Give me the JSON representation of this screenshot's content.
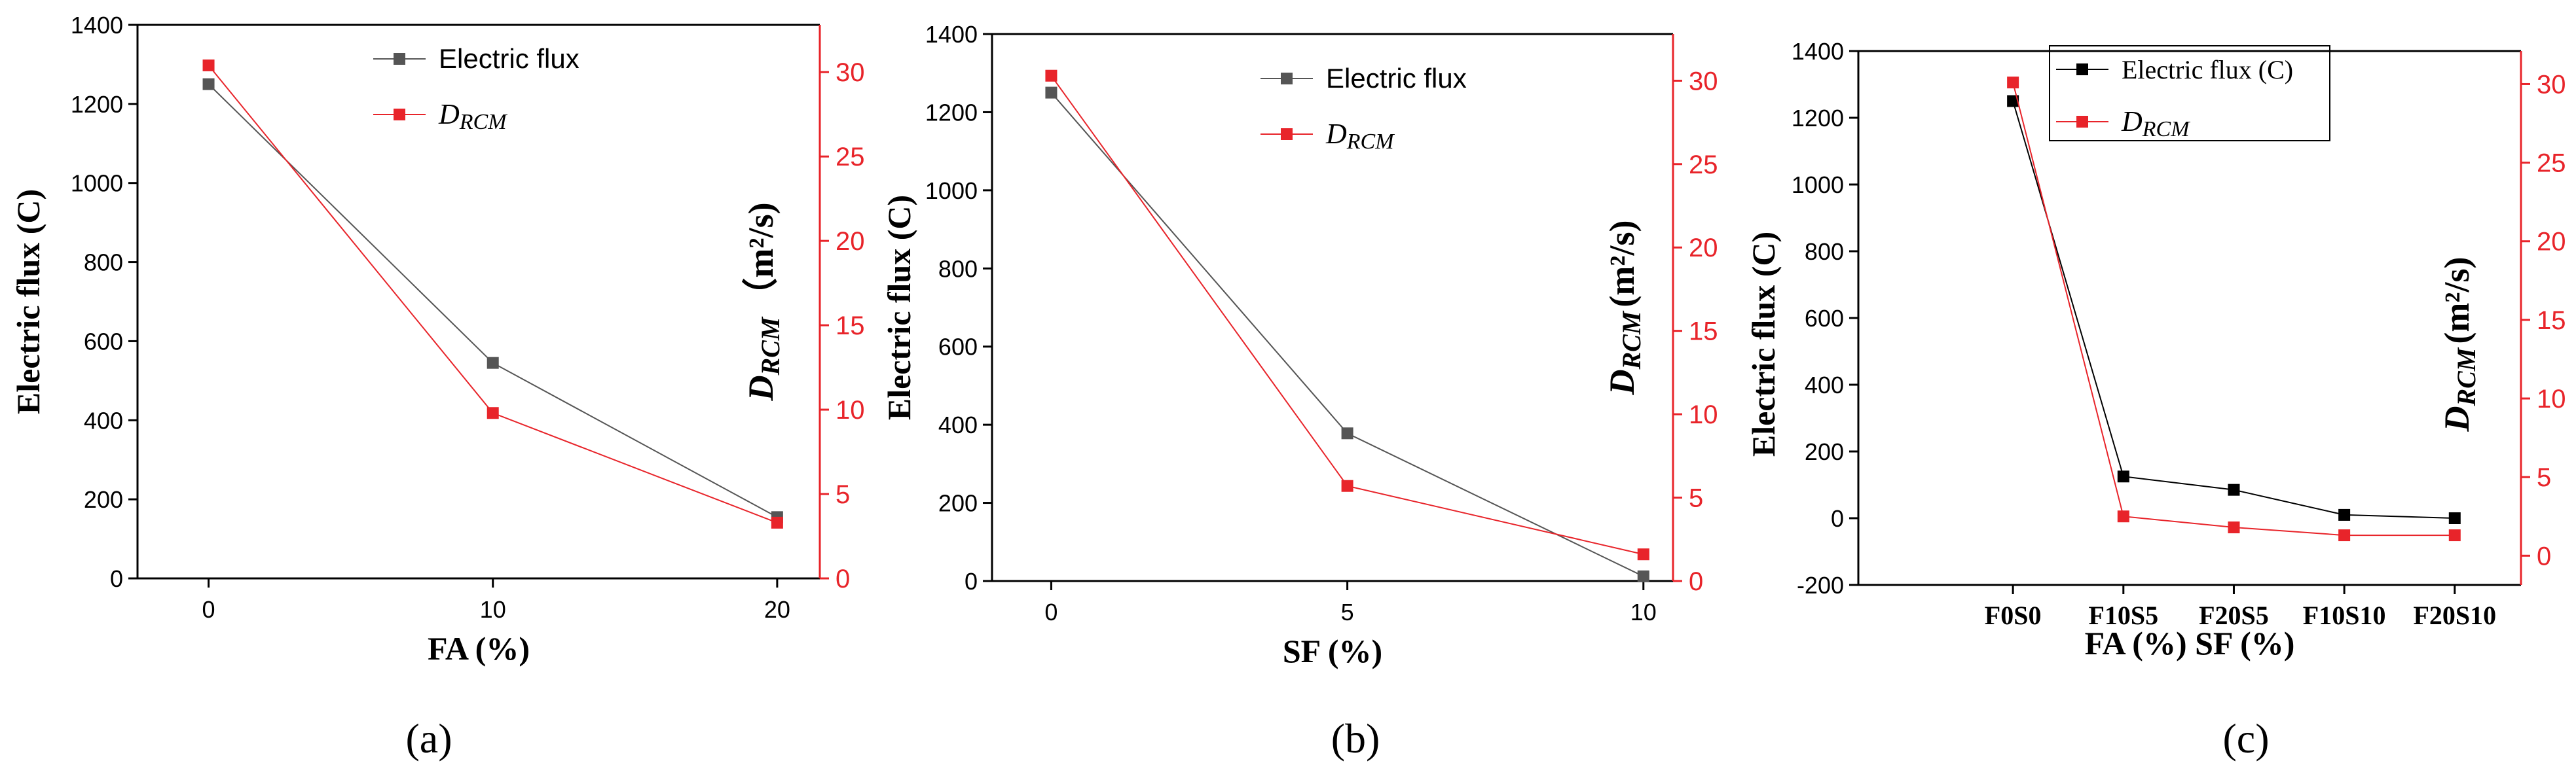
{
  "chart_data": [
    {
      "type": "line",
      "panel_label": "(a)",
      "categories": [
        "0",
        "10",
        "20"
      ],
      "x_values": [
        0,
        10,
        20
      ],
      "xlim": [
        -2.5,
        21.5
      ],
      "xticks": [
        "0",
        "10",
        "20"
      ],
      "xlabel": "FA (%)",
      "ylabel_left": "Electric flux (C)",
      "ylabel_right_main": "D",
      "ylabel_right_sub": "RCM",
      "ylabel_right_unit": "（m²/s)",
      "ylim_left": [
        0,
        1400
      ],
      "yticks_left": [
        "0",
        "200",
        "400",
        "600",
        "800",
        "1000",
        "1200",
        "1400"
      ],
      "ylim_right": [
        0,
        32.8
      ],
      "yticks_right": [
        "0",
        "5",
        "10",
        "15",
        "20",
        "25",
        "30"
      ],
      "legend_position": "top-center",
      "series": [
        {
          "name": "Electric flux",
          "axis": "left",
          "color": "#555555",
          "values": [
            1250,
            545,
            155
          ]
        },
        {
          "name": "D",
          "name_sub": "RCM",
          "axis": "right",
          "color": "#e8242a",
          "values": [
            30.4,
            9.8,
            3.3
          ]
        }
      ]
    },
    {
      "type": "line",
      "panel_label": "(b)",
      "categories": [
        "0",
        "5",
        "10"
      ],
      "x_values": [
        0,
        5,
        10
      ],
      "xlim": [
        -1,
        10.5
      ],
      "xticks": [
        "0",
        "5",
        "10"
      ],
      "xlabel": "SF (%)",
      "ylabel_left": "Electric flux (C)",
      "ylabel_right_main": "D",
      "ylabel_right_sub": "RCM",
      "ylabel_right_unit": "(m²/s)",
      "ylim_left": [
        0,
        1400
      ],
      "yticks_left": [
        "0",
        "200",
        "400",
        "600",
        "800",
        "1000",
        "1200",
        "1400"
      ],
      "ylim_right": [
        0,
        32.8
      ],
      "yticks_right": [
        "0",
        "5",
        "10",
        "15",
        "20",
        "25",
        "30"
      ],
      "legend_position": "top-center",
      "series": [
        {
          "name": "Electric flux",
          "axis": "left",
          "color": "#555555",
          "values": [
            1250,
            378,
            12
          ]
        },
        {
          "name": "D",
          "name_sub": "RCM",
          "axis": "right",
          "color": "#e8242a",
          "values": [
            30.3,
            5.7,
            1.6
          ]
        }
      ]
    },
    {
      "type": "line",
      "panel_label": "(c)",
      "categories": [
        "F0S0",
        "F10S5",
        "F20S5",
        "F10S10",
        "F20S10"
      ],
      "x_values": [
        1,
        2,
        3,
        4,
        5
      ],
      "xlim": [
        -0.4,
        5.6
      ],
      "xticks": [
        "F0S0",
        "F10S5",
        "F20S5",
        "F10S10",
        "F20S10"
      ],
      "xlabel": "FA (%) SF (%)",
      "ylabel_left": "Electric flux (C)",
      "ylabel_right_main": "D",
      "ylabel_right_sub": "RCM",
      "ylabel_right_unit": "(m²/s)",
      "ylim_left": [
        -200,
        1400
      ],
      "yticks_left": [
        "-200",
        "0",
        "200",
        "400",
        "600",
        "800",
        "1000",
        "1200",
        "1400"
      ],
      "ylim_right": [
        -1.86,
        32.1
      ],
      "yticks_right": [
        "0",
        "5",
        "10",
        "15",
        "20",
        "25",
        "30"
      ],
      "legend_position": "top-center",
      "series": [
        {
          "name": "Electric flux (C)",
          "axis": "left",
          "color": "#000000",
          "values": [
            1250,
            125,
            85,
            10,
            0
          ]
        },
        {
          "name": "D",
          "name_sub": "RCM",
          "axis": "right",
          "color": "#e8242a",
          "values": [
            30.1,
            2.5,
            1.8,
            1.3,
            1.3
          ]
        }
      ]
    }
  ]
}
